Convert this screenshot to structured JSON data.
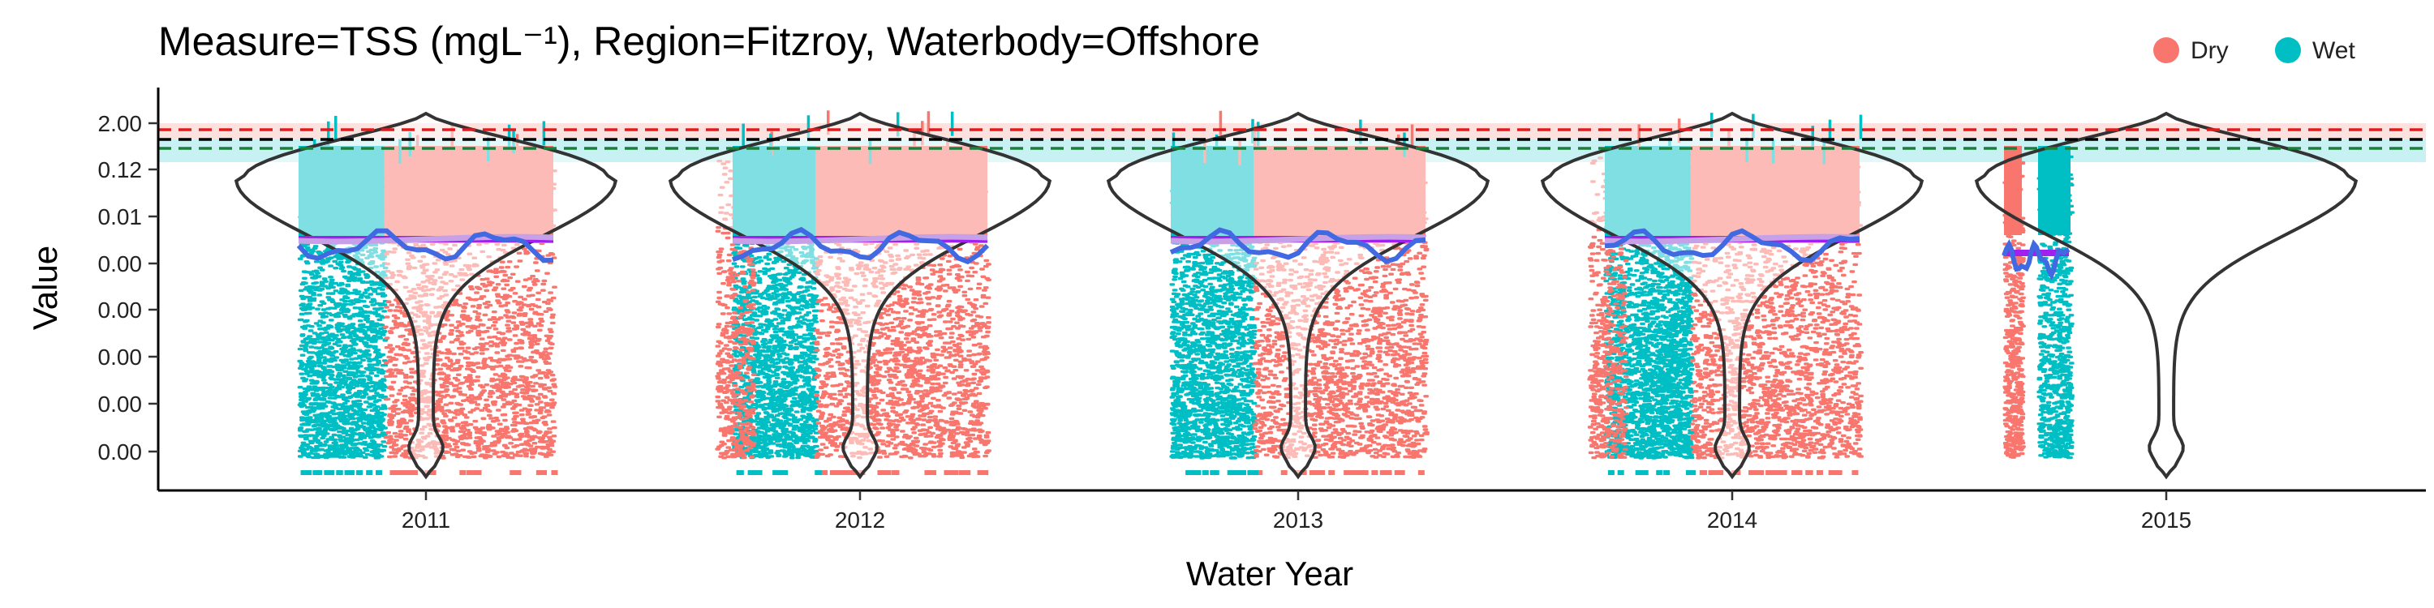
{
  "chart_data": {
    "type": "violin",
    "title": "Measure=TSS (mgL⁻¹), Region=Fitzroy, Waterbody=Offshore",
    "xlabel": "Water Year",
    "ylabel": "Value",
    "categories": [
      "2011",
      "2012",
      "2013",
      "2014",
      "2015"
    ],
    "y_tick_labels": [
      "0.00",
      "0.00",
      "0.00",
      "0.00",
      "0.00",
      "0.01",
      "0.12",
      "2.00"
    ],
    "legend": {
      "position": "top-right",
      "entries": [
        {
          "name": "Dry",
          "color": "#F8766D"
        },
        {
          "name": "Wet",
          "color": "#00BFC4"
        }
      ]
    },
    "grid": false,
    "y_axis_scale": "log",
    "series_colors": {
      "dry": "#F8766D",
      "wet": "#00BFC4",
      "trend": "#4169E1",
      "mean_line": "#A020F0",
      "smooth": "#C8A0E8"
    },
    "reference_lines": [
      {
        "level": 1.8,
        "color": "#E31A1C",
        "style": "dashed"
      },
      {
        "level": 1.5,
        "color": "#000000",
        "style": "dashed"
      },
      {
        "level": 1.3,
        "color": "#1B7F3B",
        "style": "dashed"
      }
    ],
    "reference_bands": [
      {
        "from": 1.5,
        "to": 2.0,
        "color": "#F8766D"
      },
      {
        "from": 1.2,
        "to": 1.5,
        "color": "#00BFC4"
      }
    ],
    "years": [
      {
        "year": "2011",
        "dry_share": 0.45,
        "has_points": true,
        "mean": 0.006
      },
      {
        "year": "2012",
        "dry_share": 0.42,
        "has_points": true,
        "mean": 0.005
      },
      {
        "year": "2013",
        "dry_share": 0.42,
        "has_points": true,
        "mean": 0.006
      },
      {
        "year": "2014",
        "dry_share": 0.45,
        "has_points": true,
        "mean": 0.006
      },
      {
        "year": "2015",
        "dry_share": 0.42,
        "has_points": false,
        "mean": 0.003
      }
    ]
  }
}
